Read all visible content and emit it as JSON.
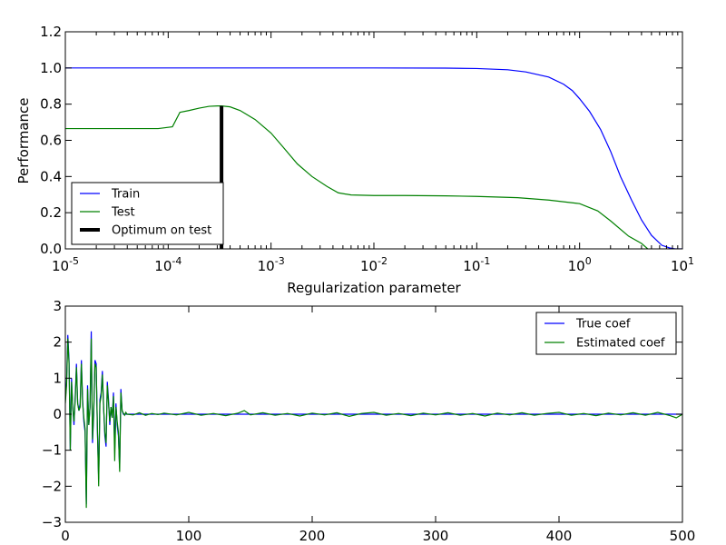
{
  "chart_data": [
    {
      "type": "line",
      "xlabel": "Regularization parameter",
      "ylabel": "Performance",
      "xscale": "log",
      "xlim": [
        1e-05,
        10
      ],
      "ylim": [
        0.0,
        1.2
      ],
      "x_tick_labels": [
        {
          "base": "10",
          "exp": "-5"
        },
        {
          "base": "10",
          "exp": "-4"
        },
        {
          "base": "10",
          "exp": "-3"
        },
        {
          "base": "10",
          "exp": "-2"
        },
        {
          "base": "10",
          "exp": "-1"
        },
        {
          "base": "10",
          "exp": "0"
        },
        {
          "base": "10",
          "exp": "1"
        }
      ],
      "y_tick_labels": [
        "0.0",
        "0.2",
        "0.4",
        "0.6",
        "0.8",
        "1.0",
        "1.2"
      ],
      "legend_position": "bottom-left",
      "legend": [
        "Train",
        "Test",
        "Optimum on test"
      ],
      "series": [
        {
          "name": "Train",
          "color": "#0000ff",
          "x": [
            1e-05,
            0.0001,
            0.001,
            0.01,
            0.05,
            0.1,
            0.2,
            0.3,
            0.5,
            0.7,
            0.85,
            1.0,
            1.25,
            1.6,
            2.0,
            2.5,
            3.2,
            4.0,
            5.0,
            6.3,
            7.5,
            8.5,
            10.0
          ],
          "y": [
            1.0,
            1.0,
            1.0,
            1.0,
            0.999,
            0.997,
            0.99,
            0.978,
            0.95,
            0.91,
            0.875,
            0.83,
            0.76,
            0.66,
            0.54,
            0.4,
            0.27,
            0.16,
            0.075,
            0.02,
            0.005,
            0.0,
            0.0
          ]
        },
        {
          "name": "Test",
          "color": "#008000",
          "x": [
            1e-05,
            5e-05,
            8e-05,
            0.00011,
            0.00013,
            0.00016,
            0.0002,
            0.00025,
            0.0003,
            0.00033,
            0.0004,
            0.0005,
            0.0007,
            0.001,
            0.0013,
            0.0018,
            0.0025,
            0.0035,
            0.0045,
            0.006,
            0.01,
            0.02,
            0.05,
            0.1,
            0.25,
            0.5,
            1.0,
            1.5,
            2.0,
            3.0,
            4.0,
            4.6
          ],
          "y": [
            0.665,
            0.665,
            0.665,
            0.675,
            0.755,
            0.765,
            0.778,
            0.788,
            0.79,
            0.79,
            0.785,
            0.765,
            0.715,
            0.64,
            0.565,
            0.47,
            0.4,
            0.345,
            0.31,
            0.298,
            0.295,
            0.295,
            0.293,
            0.29,
            0.283,
            0.27,
            0.25,
            0.21,
            0.155,
            0.07,
            0.03,
            0.0
          ]
        }
      ],
      "optimum": {
        "label": "Optimum on test",
        "x": 0.00033,
        "y": 0.79,
        "color": "#000000"
      }
    },
    {
      "type": "line",
      "xlim": [
        0,
        500
      ],
      "ylim": [
        -3,
        3
      ],
      "x_tick_labels": [
        "0",
        "100",
        "200",
        "300",
        "400",
        "500"
      ],
      "y_tick_labels": [
        "−3",
        "−2",
        "−1",
        "0",
        "1",
        "2",
        "3"
      ],
      "legend_position": "top-right",
      "legend": [
        "True coef",
        "Estimated coef"
      ],
      "series": [
        {
          "name": "True coef",
          "color": "#0000ff",
          "x": [
            0,
            1,
            2,
            3,
            4,
            5,
            6,
            7,
            8,
            9,
            10,
            11,
            12,
            13,
            14,
            15,
            16,
            17,
            18,
            19,
            20,
            21,
            22,
            23,
            24,
            25,
            26,
            27,
            28,
            29,
            30,
            31,
            32,
            33,
            34,
            35,
            36,
            37,
            38,
            39,
            40,
            41,
            42,
            43,
            44,
            45,
            46,
            47,
            48,
            49,
            50,
            60,
            80,
            100,
            150,
            200,
            250,
            300,
            350,
            400,
            450,
            500
          ],
          "y": [
            0.4,
            0.9,
            2.2,
            1.5,
            -1.0,
            1.0,
            0.2,
            -0.3,
            0.5,
            1.4,
            0.3,
            0.1,
            0.3,
            1.5,
            0.4,
            -0.2,
            -0.5,
            -2.5,
            0.8,
            -0.3,
            0.2,
            2.3,
            -0.8,
            0.0,
            1.5,
            1.4,
            -0.5,
            -1.8,
            0.4,
            0.6,
            1.2,
            0.2,
            -0.6,
            -0.9,
            0.9,
            0.4,
            -0.3,
            0.2,
            -0.1,
            0.6,
            -1.0,
            0.3,
            -0.3,
            -0.6,
            -1.5,
            0.7,
            0.1,
            0.0,
            0.0,
            0.0,
            0.0,
            0.0,
            0.0,
            0.0,
            0.0,
            0.0,
            0.0,
            0.0,
            0.0,
            0.0,
            0.0,
            0.0
          ]
        },
        {
          "name": "Estimated coef",
          "color": "#008000",
          "x": [
            0,
            1,
            2,
            3,
            4,
            5,
            6,
            7,
            8,
            9,
            10,
            11,
            12,
            13,
            14,
            15,
            16,
            17,
            18,
            19,
            20,
            21,
            22,
            23,
            24,
            25,
            26,
            27,
            28,
            29,
            30,
            31,
            32,
            33,
            34,
            35,
            36,
            37,
            38,
            39,
            40,
            41,
            42,
            43,
            44,
            45,
            46,
            47,
            48,
            49,
            50,
            55,
            60,
            65,
            70,
            75,
            80,
            90,
            100,
            110,
            120,
            130,
            140,
            145,
            150,
            160,
            170,
            180,
            190,
            200,
            210,
            220,
            230,
            240,
            250,
            260,
            270,
            280,
            290,
            300,
            310,
            320,
            330,
            340,
            350,
            360,
            370,
            380,
            390,
            400,
            410,
            420,
            430,
            440,
            450,
            460,
            470,
            480,
            490,
            495,
            500
          ],
          "y": [
            0.3,
            0.8,
            2.1,
            1.4,
            -1.0,
            0.9,
            0.2,
            -0.2,
            0.4,
            1.3,
            0.3,
            0.1,
            0.2,
            1.4,
            0.3,
            -0.1,
            -0.4,
            -2.6,
            0.7,
            -0.3,
            0.2,
            2.1,
            -0.7,
            0.1,
            1.4,
            1.3,
            -0.4,
            -2.0,
            0.3,
            0.5,
            1.1,
            0.2,
            -0.5,
            -0.8,
            0.8,
            0.3,
            -0.2,
            0.2,
            -0.1,
            0.5,
            -1.3,
            0.2,
            -0.2,
            -0.5,
            -1.6,
            0.6,
            0.1,
            0.03,
            -0.03,
            0.05,
            0.0,
            -0.02,
            0.04,
            -0.03,
            0.02,
            -0.01,
            0.03,
            -0.02,
            0.05,
            -0.03,
            0.02,
            -0.04,
            0.03,
            0.1,
            -0.02,
            0.04,
            -0.03,
            0.02,
            -0.05,
            0.03,
            -0.02,
            0.04,
            -0.06,
            0.02,
            0.05,
            -0.03,
            0.02,
            -0.04,
            0.03,
            -0.02,
            0.04,
            -0.03,
            0.02,
            -0.05,
            0.03,
            -0.02,
            0.04,
            -0.03,
            0.02,
            0.05,
            -0.03,
            0.02,
            -0.04,
            0.03,
            -0.02,
            0.04,
            -0.03,
            0.05,
            -0.04,
            -0.1,
            0.0
          ]
        }
      ]
    }
  ]
}
